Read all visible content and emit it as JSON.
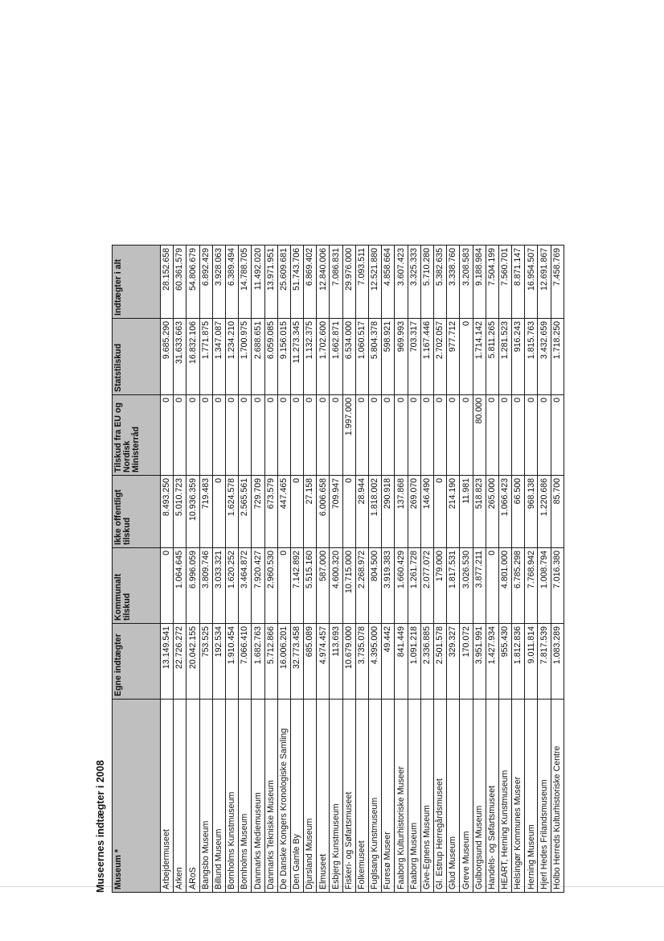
{
  "title": "Museernes indtægter i 2008",
  "columns": [
    "Museum *",
    "Egne indtægter",
    "Kommunalt tilskud",
    "Ikke offentligt tilskud",
    "Tilskud fra EU og Nordisk Ministerråd",
    "Statstilskud",
    "Indtægter i alt"
  ],
  "rows": [
    [
      "Arbejdermuseet",
      "13.149.541",
      "0",
      "8.493.250",
      "0",
      "9.685.290",
      "28.152.658"
    ],
    [
      "Arken",
      "22.726.272",
      "1.064.645",
      "5.010.723",
      "0",
      "31.633.663",
      "60.361.579"
    ],
    [
      "ARoS",
      "20.042.155",
      "6.996.059",
      "10.936.359",
      "0",
      "16.832.106",
      "54.806.679"
    ],
    [
      "Bangsbo Museum",
      "753.525",
      "3.809.746",
      "719.483",
      "0",
      "1.771.875",
      "6.892.429"
    ],
    [
      "Billund Museum",
      "192.534",
      "3.033.321",
      "0",
      "0",
      "1.347.087",
      "3.928.063"
    ],
    [
      "Bornholms Kunstmuseum",
      "1.910.454",
      "1.620.252",
      "1.624.578",
      "0",
      "1.234.210",
      "6.389.494"
    ],
    [
      "Bornholms Museum",
      "7.066.410",
      "3.464.872",
      "2.565.561",
      "0",
      "1.700.975",
      "14.788.705"
    ],
    [
      "Danmarks Mediemuseum",
      "1.682.763",
      "7.920.427",
      "729.709",
      "0",
      "2.688.651",
      "11.492.020"
    ],
    [
      "Danmarks Tekniske Museum",
      "5.712.866",
      "2.960.530",
      "673.579",
      "0",
      "6.059.085",
      "13.971.951"
    ],
    [
      "De Danske Kongers Kronologiske Samling",
      "16.006.201",
      "0",
      "447.465",
      "0",
      "9.156.015",
      "25.609.681"
    ],
    [
      "Den Gamle By",
      "32.773.458",
      "7.142.892",
      "0",
      "0",
      "11.273.345",
      "51.743.706"
    ],
    [
      "Djursland Museum",
      "685.089",
      "5.515.160",
      "27.158",
      "0",
      "1.132.375",
      "6.869.402"
    ],
    [
      "Elmuseet",
      "4.974.457",
      "587.000",
      "6.006.658",
      "0",
      "1.702.600",
      "12.840.006"
    ],
    [
      "Esbjerg Kunstmuseum",
      "113.693",
      "4.600.320",
      "709.947",
      "0",
      "1.662.871",
      "7.086.831"
    ],
    [
      "Fiskeri- og Søfartsmuseet",
      "10.679.000",
      "10.715.000",
      "0",
      "1.997.000",
      "6.534.000",
      "29.976.000"
    ],
    [
      "Folkemuseet",
      "3.735.078",
      "2.268.972",
      "28.944",
      "0",
      "1.060.517",
      "7.093.511"
    ],
    [
      "Fuglsang Kunstmuseum",
      "4.395.000",
      "804.500",
      "1.818.002",
      "0",
      "5.804.378",
      "12.521.880"
    ],
    [
      "Furesø Museer",
      "49.442",
      "3.919.383",
      "290.918",
      "0",
      "598.921",
      "4.858.664"
    ],
    [
      "Faaborg Kulturhistoriske Museer",
      "841.449",
      "1.660.429",
      "137.868",
      "0",
      "969.993",
      "3.607.423"
    ],
    [
      "Faaborg Museum",
      "1.091.218",
      "1.261.728",
      "269.070",
      "0",
      "703.317",
      "3.325.333"
    ],
    [
      "Give-Egnens Museum",
      "2.336.885",
      "2.077.072",
      "146.490",
      "0",
      "1.167.446",
      "5.710.280"
    ],
    [
      "Gl. Estrup Herregårdsmuseet",
      "2.501.578",
      "179.000",
      "0",
      "0",
      "2.702.057",
      "5.382.635"
    ],
    [
      "Glud Museum",
      "329.327",
      "1.817.531",
      "214.190",
      "0",
      "977.712",
      "3.338.760"
    ],
    [
      "Greve Museum",
      "170.072",
      "3.026.530",
      "11.981",
      "0",
      "0",
      "3.208.583"
    ],
    [
      "Gulborgsund Museum",
      "3.951.991",
      "3.877.211",
      "518.823",
      "80.000",
      "1.714.142",
      "9.188.984"
    ],
    [
      "Handels- og Søfartsmuseet",
      "1.427.934",
      "0",
      "265.000",
      "0",
      "5.811.265",
      "7.504.199"
    ],
    [
      "HEART, Herning Kunstmuseum",
      "955.430",
      "4.801.000",
      "1.066.423",
      "0",
      "1.281.523",
      "7.560.701"
    ],
    [
      "Helsingør Kommunes Museer",
      "1.812.836",
      "6.785.298",
      "66.500",
      "0",
      "916.243",
      "8.871.147"
    ],
    [
      "Herning Museum",
      "9.011.814",
      "7.768.942",
      "968.138",
      "0",
      "1.815.763",
      "16.954.507"
    ],
    [
      "Hjerl Hedes Frilandsmuseum",
      "7.817.539",
      "1.008.794",
      "1.220.686",
      "0",
      "3.432.659",
      "12.691.867"
    ],
    [
      "Holbo Herreds Kulturhistoriske Centre",
      "1.083.289",
      "7.016.380",
      "85.700",
      "0",
      "1.718.250",
      "7.458.769"
    ]
  ]
}
